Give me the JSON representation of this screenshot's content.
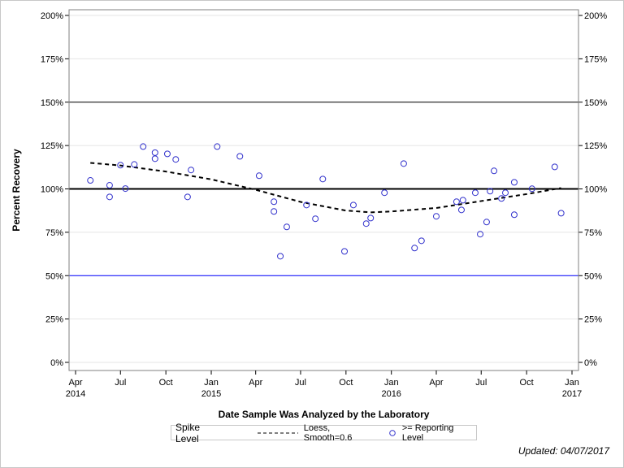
{
  "chart_data": {
    "type": "scatter",
    "xlabel": "Date Sample Was Analyzed by the Laboratory",
    "ylabel": "Percent Recovery",
    "xlim": [
      "2014-03-20",
      "2017-01-10"
    ],
    "ylim": [
      0,
      200
    ],
    "x_ticks": [
      {
        "date": "2014-04-01",
        "label": "Apr",
        "year": "2014"
      },
      {
        "date": "2014-07-01",
        "label": "Jul",
        "year": ""
      },
      {
        "date": "2014-10-01",
        "label": "Oct",
        "year": ""
      },
      {
        "date": "2015-01-01",
        "label": "Jan",
        "year": "2015"
      },
      {
        "date": "2015-04-01",
        "label": "Apr",
        "year": ""
      },
      {
        "date": "2015-07-01",
        "label": "Jul",
        "year": ""
      },
      {
        "date": "2015-10-01",
        "label": "Oct",
        "year": ""
      },
      {
        "date": "2016-01-01",
        "label": "Jan",
        "year": "2016"
      },
      {
        "date": "2016-04-01",
        "label": "Apr",
        "year": ""
      },
      {
        "date": "2016-07-01",
        "label": "Jul",
        "year": ""
      },
      {
        "date": "2016-10-01",
        "label": "Oct",
        "year": ""
      },
      {
        "date": "2017-01-01",
        "label": "Jan",
        "year": "2017"
      }
    ],
    "y_ticks": [
      0,
      25,
      50,
      75,
      100,
      125,
      150,
      175,
      200
    ],
    "y_tick_suffix": "%",
    "grid": true,
    "reference_lines": [
      {
        "y": 150,
        "color": "#000000",
        "style": "thin"
      },
      {
        "y": 100,
        "color": "#000000",
        "style": "thick"
      },
      {
        "y": 50,
        "color": "#0000ff",
        "style": "thin"
      }
    ],
    "series": [
      {
        "name": ">= Reporting Level",
        "type": "scatter",
        "color": "#3333cc",
        "points": [
          [
            "2014-05-01",
            104.9
          ],
          [
            "2014-06-09",
            102.1
          ],
          [
            "2014-06-09",
            95.4
          ],
          [
            "2014-07-01",
            113.7
          ],
          [
            "2014-07-11",
            100.2
          ],
          [
            "2014-07-29",
            114.1
          ],
          [
            "2014-08-16",
            124.4
          ],
          [
            "2014-09-09",
            120.9
          ],
          [
            "2014-09-09",
            117.4
          ],
          [
            "2014-10-04",
            120.2
          ],
          [
            "2014-10-21",
            117.0
          ],
          [
            "2014-11-14",
            95.4
          ],
          [
            "2014-11-21",
            110.9
          ],
          [
            "2015-01-13",
            124.4
          ],
          [
            "2015-02-28",
            118.8
          ],
          [
            "2015-04-08",
            107.6
          ],
          [
            "2015-05-08",
            92.6
          ],
          [
            "2015-05-08",
            87.0
          ],
          [
            "2015-05-21",
            61.2
          ],
          [
            "2015-06-03",
            78.1
          ],
          [
            "2015-07-13",
            90.7
          ],
          [
            "2015-07-31",
            82.8
          ],
          [
            "2015-08-15",
            105.7
          ],
          [
            "2015-09-28",
            64.0
          ],
          [
            "2015-10-16",
            90.7
          ],
          [
            "2015-11-11",
            80.0
          ],
          [
            "2015-11-20",
            83.2
          ],
          [
            "2015-12-18",
            97.8
          ],
          [
            "2016-01-26",
            114.6
          ],
          [
            "2016-02-17",
            65.9
          ],
          [
            "2016-03-02",
            70.1
          ],
          [
            "2016-04-01",
            84.2
          ],
          [
            "2016-05-12",
            92.6
          ],
          [
            "2016-05-22",
            87.9
          ],
          [
            "2016-05-25",
            93.5
          ],
          [
            "2016-06-19",
            97.8
          ],
          [
            "2016-06-29",
            73.9
          ],
          [
            "2016-07-12",
            80.9
          ],
          [
            "2016-07-19",
            98.7
          ],
          [
            "2016-07-27",
            110.4
          ],
          [
            "2016-08-11",
            94.5
          ],
          [
            "2016-08-19",
            97.8
          ],
          [
            "2016-09-06",
            103.8
          ],
          [
            "2016-09-06",
            85.1
          ],
          [
            "2016-10-12",
            100.1
          ],
          [
            "2016-11-27",
            112.7
          ],
          [
            "2016-12-10",
            86.0
          ]
        ]
      },
      {
        "name": "Loess, Smooth=0.6",
        "type": "line",
        "style": "dashed",
        "color": "#000000",
        "points": [
          [
            "2014-05-01",
            115
          ],
          [
            "2014-07-01",
            113.5
          ],
          [
            "2014-10-01",
            110
          ],
          [
            "2015-01-01",
            105.5
          ],
          [
            "2015-04-01",
            99.5
          ],
          [
            "2015-07-01",
            92.5
          ],
          [
            "2015-10-01",
            87.5
          ],
          [
            "2015-11-20",
            86.5
          ],
          [
            "2016-01-01",
            87
          ],
          [
            "2016-04-01",
            89
          ],
          [
            "2016-07-01",
            93
          ],
          [
            "2016-10-01",
            97
          ],
          [
            "2016-12-10",
            100.5
          ]
        ]
      }
    ],
    "legend": {
      "title": "Spike Level",
      "placement": "bottom"
    }
  },
  "footer": {
    "updated": "Updated: 04/07/2017"
  }
}
